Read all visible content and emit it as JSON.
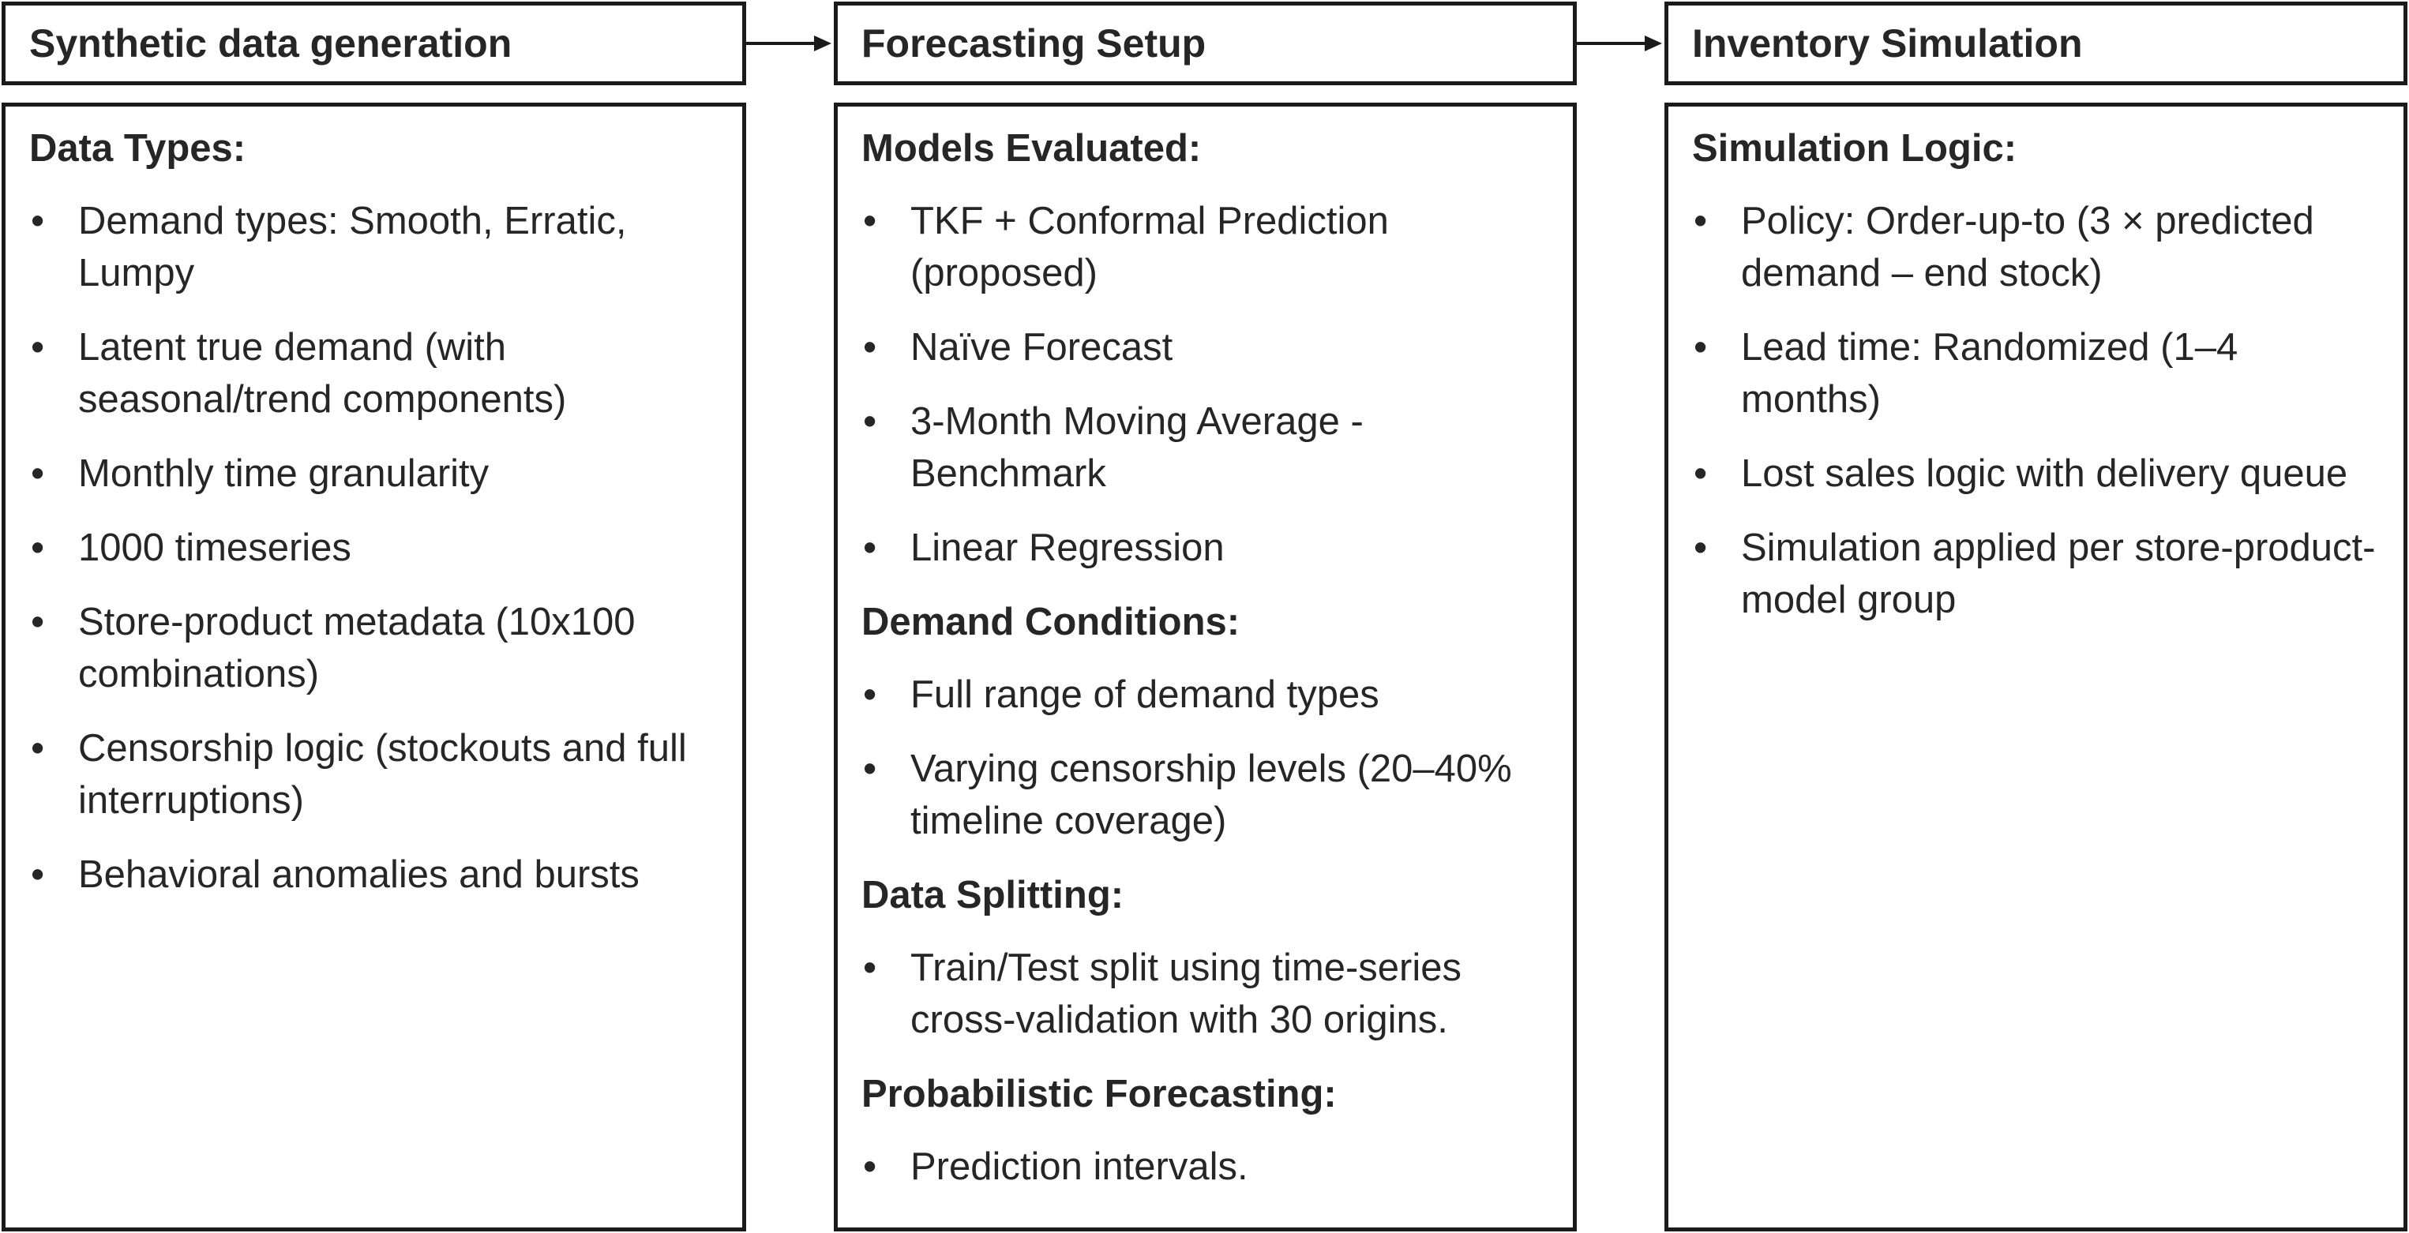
{
  "columns": [
    {
      "title": "Synthetic data generation",
      "sections": [
        {
          "heading": "Data Types:",
          "items": [
            "Demand types: Smooth, Erratic, Lumpy",
            "Latent true demand (with seasonal/trend components)",
            "Monthly time granularity",
            "1000 timeseries",
            "Store-product metadata (10x100 combinations)",
            "Censorship logic (stockouts and full interruptions)",
            "Behavioral anomalies and bursts"
          ]
        }
      ]
    },
    {
      "title": "Forecasting Setup",
      "sections": [
        {
          "heading": "Models Evaluated:",
          "items": [
            "TKF + Conformal Prediction (proposed)",
            "Naïve Forecast",
            "3-Month Moving Average - Benchmark",
            "Linear Regression"
          ]
        },
        {
          "heading": "Demand Conditions:",
          "items": [
            "Full range of demand types",
            "Varying censorship levels (20–40% timeline coverage)"
          ]
        },
        {
          "heading": "Data Splitting:",
          "items": [
            "Train/Test split using time-series cross-validation with 30 origins."
          ]
        },
        {
          "heading": "Probabilistic Forecasting:",
          "items": [
            "Prediction intervals."
          ]
        }
      ]
    },
    {
      "title": "Inventory Simulation",
      "sections": [
        {
          "heading": "Simulation Logic:",
          "items": [
            "Policy: Order-up-to (3 × predicted demand – end stock)",
            "Lead time: Randomized (1–4 months)",
            "Lost sales logic with delivery queue",
            "Simulation applied per store-product-model group"
          ]
        }
      ]
    }
  ],
  "bullet_glyph": "•",
  "colors": {
    "border": "#1a1a1a",
    "text": "#262626",
    "background": "#ffffff"
  }
}
